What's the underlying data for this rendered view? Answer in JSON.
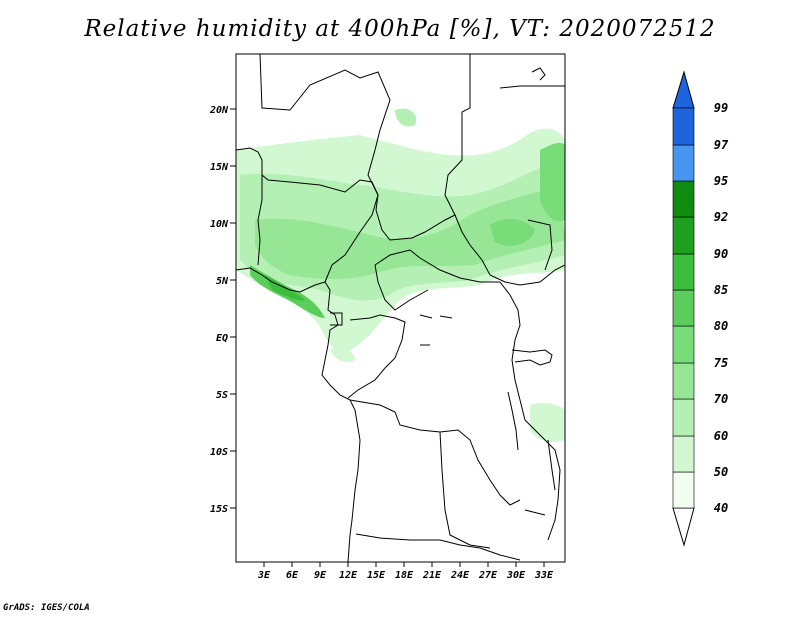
{
  "title": "Relative humidity at 400hPa [%], VT: 2020072512",
  "credit": "GrADS: IGES/COLA",
  "map": {
    "lat_labels": [
      "20N",
      "15N",
      "10N",
      "5N",
      "EQ",
      "5S",
      "10S",
      "15S"
    ],
    "lon_labels": [
      "3E",
      "6E",
      "9E",
      "12E",
      "15E",
      "18E",
      "21E",
      "24E",
      "27E",
      "30E",
      "33E"
    ]
  },
  "colorbar": {
    "levels": [
      "40",
      "50",
      "60",
      "70",
      "75",
      "80",
      "85",
      "90",
      "92",
      "95",
      "97",
      "99"
    ],
    "colors": [
      "#f0fff0",
      "#d2f8d2",
      "#b4f0b4",
      "#96e696",
      "#78dc78",
      "#5acd5a",
      "#3cbe3c",
      "#1ea01e",
      "#0f8c0f",
      "#4696f0",
      "#1e64dc",
      "#0a46b4"
    ]
  }
}
